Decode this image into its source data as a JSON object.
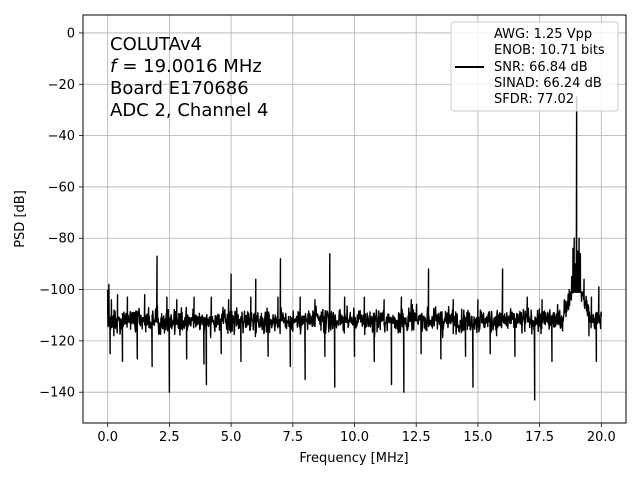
{
  "chart_data": {
    "type": "line",
    "xlabel": "Frequency [MHz]",
    "ylabel": "PSD [dB]",
    "xlim": [
      -1.0,
      21.0
    ],
    "ylim": [
      -152,
      7
    ],
    "xticks": [
      0.0,
      2.5,
      5.0,
      7.5,
      10.0,
      12.5,
      15.0,
      17.5,
      20.0
    ],
    "xtick_labels": [
      "0.0",
      "2.5",
      "5.0",
      "7.5",
      "10.0",
      "12.5",
      "15.0",
      "17.5",
      "20.0"
    ],
    "yticks": [
      0,
      -20,
      -40,
      -60,
      -80,
      -100,
      -120,
      -140
    ],
    "ytick_labels": [
      "0",
      "−20",
      "−40",
      "−60",
      "−80",
      "−100",
      "−120",
      "−140"
    ],
    "grid": true,
    "legend_position": "top-right",
    "annotation": [
      "COLUTAv4",
      "= 19.0016 MHz",
      "Board E170686",
      "ADC 2, Channel 4"
    ],
    "annotation_f_symbol": "f",
    "legend_lines": [
      "AWG: 1.25 Vpp",
      "ENOB: 10.71 bits",
      "SNR: 66.84 dB",
      "SINAD: 66.24 dB",
      "SFDR: 77.02"
    ],
    "series": [
      {
        "color": "#000000",
        "noise_floor": -112,
        "x_range": [
          0.0,
          20.0
        ],
        "points": [
          [
            0.0,
            -100
          ],
          [
            0.05,
            -98
          ],
          [
            0.1,
            -125
          ],
          [
            0.15,
            -104
          ],
          [
            0.25,
            -118
          ],
          [
            0.4,
            -102
          ],
          [
            0.6,
            -128
          ],
          [
            0.8,
            -103
          ],
          [
            1.2,
            -127
          ],
          [
            1.5,
            -102
          ],
          [
            1.8,
            -130
          ],
          [
            2.0,
            -87
          ],
          [
            2.05,
            -112
          ],
          [
            2.4,
            -103
          ],
          [
            2.5,
            -140
          ],
          [
            2.8,
            -104
          ],
          [
            3.2,
            -127
          ],
          [
            3.5,
            -103
          ],
          [
            3.9,
            -129
          ],
          [
            4.0,
            -137
          ],
          [
            4.2,
            -103
          ],
          [
            4.6,
            -125
          ],
          [
            4.9,
            -104
          ],
          [
            5.0,
            -94
          ],
          [
            5.05,
            -112
          ],
          [
            5.4,
            -128
          ],
          [
            5.8,
            -103
          ],
          [
            6.0,
            -96
          ],
          [
            6.05,
            -112
          ],
          [
            6.5,
            -126
          ],
          [
            6.9,
            -103
          ],
          [
            7.0,
            -88
          ],
          [
            7.05,
            -112
          ],
          [
            7.4,
            -130
          ],
          [
            7.8,
            -103
          ],
          [
            8.0,
            -135
          ],
          [
            8.4,
            -104
          ],
          [
            8.8,
            -126
          ],
          [
            9.0,
            -86
          ],
          [
            9.05,
            -112
          ],
          [
            9.2,
            -138
          ],
          [
            9.6,
            -103
          ],
          [
            10.0,
            -126
          ],
          [
            10.4,
            -103
          ],
          [
            10.8,
            -128
          ],
          [
            11.2,
            -104
          ],
          [
            11.5,
            -137
          ],
          [
            11.9,
            -103
          ],
          [
            12.0,
            -140
          ],
          [
            12.3,
            -104
          ],
          [
            12.7,
            -125
          ],
          [
            13.0,
            -92
          ],
          [
            13.05,
            -112
          ],
          [
            13.5,
            -127
          ],
          [
            14.0,
            -104
          ],
          [
            14.5,
            -126
          ],
          [
            14.8,
            -138
          ],
          [
            15.0,
            -104
          ],
          [
            15.5,
            -125
          ],
          [
            16.0,
            -92
          ],
          [
            16.05,
            -112
          ],
          [
            16.5,
            -126
          ],
          [
            17.0,
            -103
          ],
          [
            17.3,
            -143
          ],
          [
            17.6,
            -104
          ],
          [
            18.0,
            -128
          ],
          [
            18.3,
            -109
          ],
          [
            18.5,
            -104
          ],
          [
            18.7,
            -100
          ],
          [
            18.8,
            -95
          ],
          [
            18.85,
            -84
          ],
          [
            18.9,
            -80
          ],
          [
            18.95,
            -90
          ],
          [
            19.0,
            -25
          ],
          [
            19.05,
            -85
          ],
          [
            19.1,
            -80
          ],
          [
            19.15,
            -86
          ],
          [
            19.3,
            -96
          ],
          [
            19.5,
            -118
          ],
          [
            19.6,
            -103
          ],
          [
            19.8,
            -128
          ],
          [
            19.9,
            -99
          ],
          [
            20.0,
            -110
          ]
        ]
      }
    ]
  }
}
